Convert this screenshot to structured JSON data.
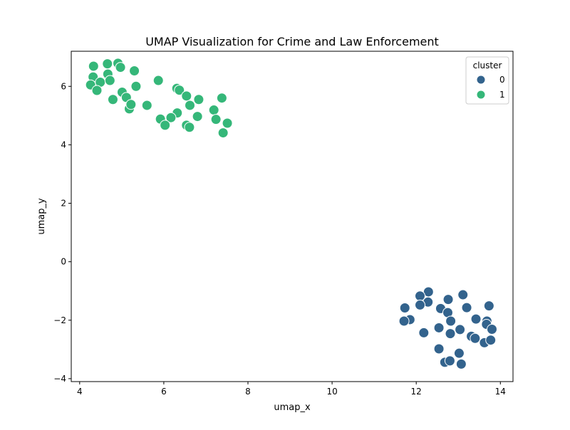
{
  "chart_data": {
    "type": "scatter",
    "title": "UMAP Visualization for Crime and Law Enforcement",
    "xlabel": "umap_x",
    "ylabel": "umap_y",
    "xlim": [
      3.8,
      14.3
    ],
    "ylim": [
      -4.1,
      7.2
    ],
    "xticks": [
      4,
      6,
      8,
      10,
      12,
      14
    ],
    "yticks": [
      -4,
      -2,
      0,
      2,
      4,
      6
    ],
    "xtick_labels": [
      "4",
      "6",
      "8",
      "10",
      "12",
      "14"
    ],
    "ytick_labels": [
      "−4",
      "−2",
      "0",
      "2",
      "4",
      "6"
    ],
    "grid": false,
    "legend": {
      "title": "cluster",
      "position": "top-right"
    },
    "series": [
      {
        "name": "0",
        "color": "#33638d",
        "points": [
          [
            12.29,
            -1.03
          ],
          [
            13.11,
            -1.13
          ],
          [
            12.09,
            -1.17
          ],
          [
            12.28,
            -1.38
          ],
          [
            12.76,
            -1.29
          ],
          [
            12.09,
            -1.48
          ],
          [
            11.73,
            -1.58
          ],
          [
            12.58,
            -1.6
          ],
          [
            13.2,
            -1.57
          ],
          [
            13.73,
            -1.51
          ],
          [
            12.75,
            -1.74
          ],
          [
            13.42,
            -1.96
          ],
          [
            11.85,
            -1.98
          ],
          [
            11.71,
            -2.03
          ],
          [
            12.82,
            -2.03
          ],
          [
            13.68,
            -2.03
          ],
          [
            13.67,
            -2.14
          ],
          [
            13.8,
            -2.31
          ],
          [
            12.54,
            -2.26
          ],
          [
            13.04,
            -2.32
          ],
          [
            12.18,
            -2.43
          ],
          [
            12.81,
            -2.46
          ],
          [
            13.31,
            -2.55
          ],
          [
            13.4,
            -2.62
          ],
          [
            13.62,
            -2.77
          ],
          [
            13.77,
            -2.68
          ],
          [
            12.54,
            -2.98
          ],
          [
            13.02,
            -3.13
          ],
          [
            12.68,
            -3.44
          ],
          [
            12.8,
            -3.39
          ],
          [
            13.07,
            -3.5
          ]
        ]
      },
      {
        "name": "1",
        "color": "#35b779",
        "points": [
          [
            4.33,
            6.69
          ],
          [
            4.66,
            6.77
          ],
          [
            4.91,
            6.79
          ],
          [
            4.97,
            6.65
          ],
          [
            4.67,
            6.42
          ],
          [
            5.3,
            6.53
          ],
          [
            4.32,
            6.32
          ],
          [
            4.26,
            6.05
          ],
          [
            4.49,
            6.14
          ],
          [
            4.72,
            6.2
          ],
          [
            5.87,
            6.2
          ],
          [
            4.41,
            5.86
          ],
          [
            5.34,
            6.0
          ],
          [
            5.01,
            5.8
          ],
          [
            6.31,
            5.93
          ],
          [
            6.37,
            5.87
          ],
          [
            4.79,
            5.55
          ],
          [
            5.11,
            5.62
          ],
          [
            6.54,
            5.67
          ],
          [
            6.83,
            5.55
          ],
          [
            7.38,
            5.6
          ],
          [
            5.18,
            5.23
          ],
          [
            5.22,
            5.38
          ],
          [
            5.6,
            5.35
          ],
          [
            6.62,
            5.35
          ],
          [
            7.19,
            5.19
          ],
          [
            6.32,
            5.09
          ],
          [
            6.17,
            4.93
          ],
          [
            5.92,
            4.88
          ],
          [
            6.8,
            4.97
          ],
          [
            7.24,
            4.87
          ],
          [
            6.03,
            4.67
          ],
          [
            6.54,
            4.67
          ],
          [
            6.61,
            4.6
          ],
          [
            7.51,
            4.74
          ],
          [
            7.41,
            4.41
          ]
        ]
      }
    ]
  }
}
